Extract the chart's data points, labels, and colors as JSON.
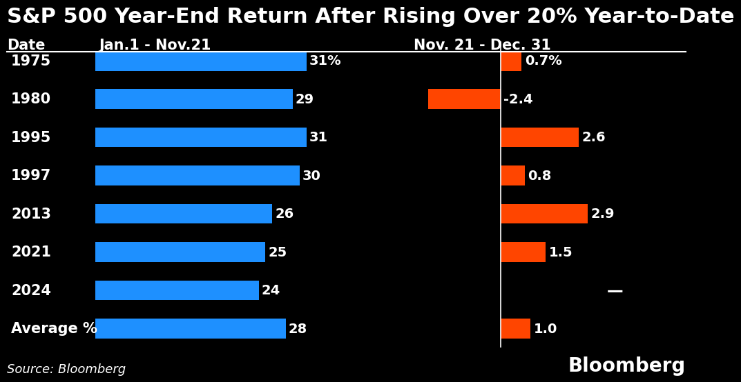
{
  "title": "S&P 500 Year-End Return After Rising Over 20% Year-to-Date",
  "col1_header": "Date",
  "col2_header": "Jan.1 - Nov.21",
  "col3_header": "Nov. 21 - Dec. 31",
  "background_color": "#000000",
  "text_color": "#ffffff",
  "blue_color": "#1e90ff",
  "orange_color": "#ff4500",
  "categories": [
    "1975",
    "1980",
    "1995",
    "1997",
    "2013",
    "2021",
    "2024",
    "Average %"
  ],
  "blue_values": [
    31,
    29,
    31,
    30,
    26,
    25,
    24,
    28
  ],
  "blue_labels": [
    "31%",
    "29",
    "31",
    "30",
    "26",
    "25",
    "24",
    "28"
  ],
  "orange_values": [
    0.7,
    -2.4,
    2.6,
    0.8,
    2.9,
    1.5,
    null,
    1.0
  ],
  "orange_labels": [
    "0.7%",
    "-2.4",
    "2.6",
    "0.8",
    "2.9",
    "1.5",
    "—",
    "1.0"
  ],
  "source_text": "Source: Bloomberg",
  "bloomberg_text": "Bloomberg",
  "source_fontsize": 13,
  "bloomberg_fontsize": 20,
  "title_fontsize": 22,
  "header_fontsize": 15,
  "category_fontsize": 15,
  "value_fontsize": 14,
  "bar_height": 0.52,
  "blue_xlim": [
    0,
    40
  ],
  "orange_xlim": [
    -3.0,
    4.5
  ],
  "orange_divider": 0
}
